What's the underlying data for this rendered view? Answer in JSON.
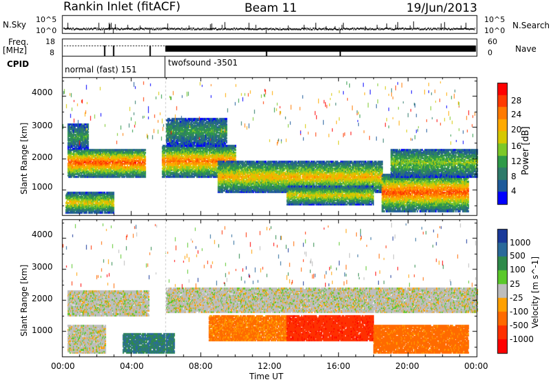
{
  "header": {
    "station": "Rankin Inlet (fitACF)",
    "beam": "Beam 11",
    "date": "19/Jun/2013"
  },
  "top_panels": {
    "nsky_label": "N.Sky",
    "nsky_ticks": [
      "10^5",
      "10^0"
    ],
    "nsearch_label": "N.Search",
    "nsearch_ticks": [
      "10^5",
      "10^0"
    ],
    "freq_label_1": "Freq.",
    "freq_label_2": "[MHz]",
    "freq_ticks": [
      "18",
      "8"
    ],
    "nave_label": "Nave",
    "nave_ticks": [
      "60",
      "0"
    ],
    "cpid_label": "CPID",
    "cpid_modes": [
      "normal (fast) 151",
      "twofsound -3501"
    ]
  },
  "power_colorbar": {
    "label": "Power [dB]",
    "ticks": [
      "28",
      "24",
      "20",
      "16",
      "12",
      "8",
      "4"
    ],
    "colors": [
      "#ff0000",
      "#ff3a00",
      "#ff7a00",
      "#ffaa00",
      "#d6c800",
      "#7cc828",
      "#2e9a48",
      "#2e7a6a",
      "#1e5a9a",
      "#0000ff"
    ]
  },
  "velocity_colorbar": {
    "label": "Velocity [m s^-1]",
    "ticks": [
      "1000",
      "500",
      "100",
      "25",
      "-25",
      "-100",
      "-500",
      "-1000"
    ],
    "colors": [
      "#1a3a9a",
      "#2a6a9a",
      "#2e8a4a",
      "#5ac82a",
      "#bdbdbd",
      "#ffa000",
      "#ff6a00",
      "#ff3000",
      "#ff0000"
    ]
  },
  "axes": {
    "ylabel": "Slant Range [km]",
    "xlabel": "Time UT",
    "yticks": [
      "4000",
      "3000",
      "2000",
      "1000"
    ],
    "xticks": [
      "00:00",
      "04:00",
      "08:00",
      "12:00",
      "16:00",
      "20:00",
      "00:00"
    ]
  },
  "chart_data": [
    {
      "type": "heatmap",
      "name": "Power [dB]",
      "xlabel": "Time UT",
      "ylabel": "Slant Range [km]",
      "xlim": [
        0,
        24
      ],
      "ylim": [
        180,
        4600
      ],
      "clim": [
        0,
        30
      ],
      "regions": [
        {
          "t0": 0.3,
          "t1": 4.8,
          "r0": 1400,
          "r1": 2300,
          "peak": 26
        },
        {
          "t0": 0.3,
          "t1": 1.5,
          "r0": 2300,
          "r1": 3100,
          "peak": 10
        },
        {
          "t0": 0.2,
          "t1": 3.0,
          "r0": 250,
          "r1": 900,
          "peak": 18
        },
        {
          "t0": 5.8,
          "t1": 10.0,
          "r0": 1400,
          "r1": 2400,
          "peak": 24
        },
        {
          "t0": 6.0,
          "t1": 9.5,
          "r0": 2400,
          "r1": 3300,
          "peak": 10
        },
        {
          "t0": 9.0,
          "t1": 18.5,
          "r0": 900,
          "r1": 1900,
          "peak": 20
        },
        {
          "t0": 13.0,
          "t1": 18.0,
          "r0": 500,
          "r1": 1100,
          "peak": 18
        },
        {
          "t0": 18.5,
          "t1": 23.5,
          "r0": 300,
          "r1": 1500,
          "peak": 26
        },
        {
          "t0": 19.0,
          "t1": 24.0,
          "r0": 1400,
          "r1": 2300,
          "peak": 14
        }
      ]
    },
    {
      "type": "heatmap",
      "name": "Velocity [m s^-1]",
      "xlabel": "Time UT",
      "ylabel": "Slant Range [km]",
      "xlim": [
        0,
        24
      ],
      "ylim": [
        180,
        4600
      ],
      "clim": [
        -1000,
        1000
      ],
      "regions": [
        {
          "t0": 0.3,
          "t1": 5.0,
          "r0": 1500,
          "r1": 2300,
          "v": 0
        },
        {
          "t0": 0.3,
          "t1": 2.5,
          "r0": 300,
          "r1": 1200,
          "v": 0
        },
        {
          "t0": 3.5,
          "t1": 6.5,
          "r0": 300,
          "r1": 900,
          "v": 300
        },
        {
          "t0": 6.0,
          "t1": 24.0,
          "r0": 1600,
          "r1": 2400,
          "v": 0
        },
        {
          "t0": 8.5,
          "t1": 13.0,
          "r0": 700,
          "r1": 1500,
          "v": -300
        },
        {
          "t0": 13.0,
          "t1": 18.0,
          "r0": 700,
          "r1": 1500,
          "v": -700
        },
        {
          "t0": 18.0,
          "t1": 23.5,
          "r0": 300,
          "r1": 1200,
          "v": -350
        }
      ]
    }
  ]
}
